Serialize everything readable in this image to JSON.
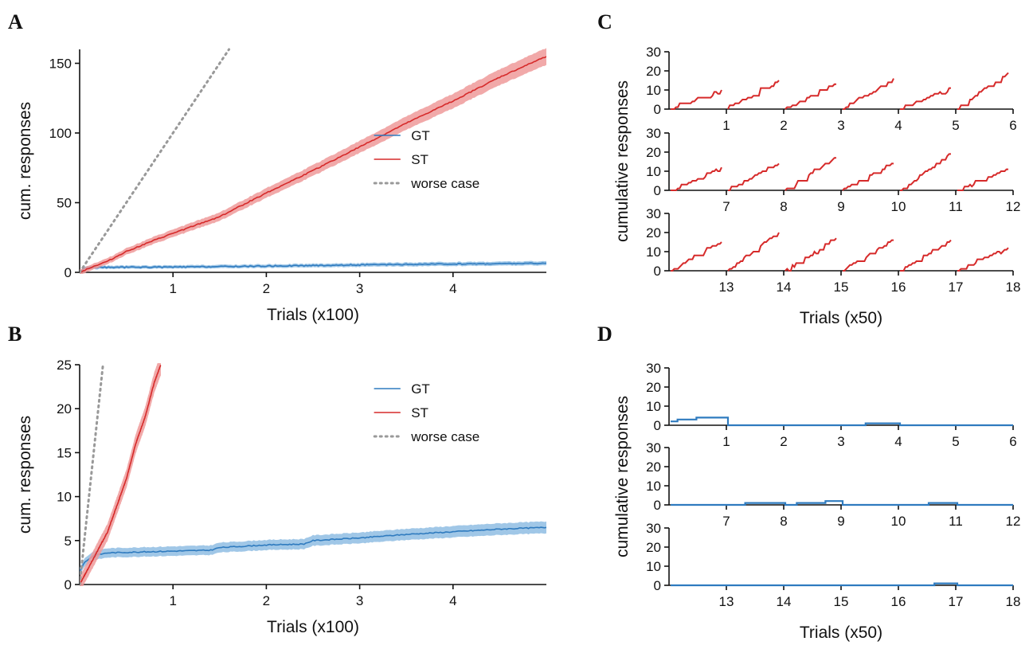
{
  "colors": {
    "gt": "#2f7bbf",
    "st": "#d62a2a",
    "st_band": "#ef9a9a",
    "gt_band": "#8fbde3",
    "worse": "#999999",
    "axis": "#111111"
  },
  "panels": {
    "a": "A",
    "b": "B",
    "c": "C",
    "d": "D"
  },
  "chart_data": [
    {
      "panel": "A",
      "type": "line",
      "xlabel": "Trials (x100)",
      "ylabel": "cum. responses",
      "xlim": [
        0,
        5
      ],
      "ylim": [
        0,
        160
      ],
      "xticks": [
        "1",
        "2",
        "3",
        "4"
      ],
      "yticks": [
        "0",
        "50",
        "100",
        "150"
      ],
      "legend": [
        "GT",
        "ST",
        "worse case"
      ],
      "legend_position": "center-right",
      "series": [
        {
          "name": "GT",
          "x": [
            0,
            0.05,
            0.1,
            0.5,
            1,
            2,
            3,
            4,
            5
          ],
          "y": [
            0,
            3,
            3.5,
            3.7,
            3.8,
            4.5,
            5.3,
            6,
            6.5
          ]
        },
        {
          "name": "ST",
          "x": [
            0,
            0.1,
            0.3,
            0.5,
            0.8,
            1,
            1.5,
            2,
            2.5,
            3,
            3.5,
            4,
            4.5,
            5
          ],
          "y": [
            0,
            3,
            8,
            15,
            23,
            28,
            40,
            57,
            73,
            90,
            107,
            123,
            140,
            155
          ]
        },
        {
          "name": "worse case",
          "x": [
            0,
            1.6
          ],
          "y": [
            0,
            160
          ]
        }
      ]
    },
    {
      "panel": "B",
      "type": "line",
      "xlabel": "Trials (x100)",
      "ylabel": "cum. responses",
      "xlim": [
        0,
        5
      ],
      "ylim": [
        0,
        25
      ],
      "xticks": [
        "1",
        "2",
        "3",
        "4"
      ],
      "yticks": [
        "0",
        "5",
        "10",
        "15",
        "20",
        "25"
      ],
      "legend": [
        "GT",
        "ST",
        "worse case"
      ],
      "legend_position": "top-right",
      "series": [
        {
          "name": "GT",
          "x": [
            0,
            0.05,
            0.15,
            0.3,
            1,
            1.4,
            1.5,
            2,
            2.4,
            2.5,
            3,
            3.5,
            4,
            4.5,
            5
          ],
          "y": [
            1.5,
            2.5,
            3.3,
            3.6,
            3.8,
            3.9,
            4.2,
            4.5,
            4.6,
            5,
            5.3,
            5.7,
            6,
            6.3,
            6.5
          ]
        },
        {
          "name": "ST",
          "x": [
            0,
            0.1,
            0.2,
            0.3,
            0.4,
            0.5,
            0.6,
            0.7,
            0.8,
            0.87
          ],
          "y": [
            0,
            2,
            4,
            6,
            9,
            12,
            16,
            19,
            23,
            25
          ]
        },
        {
          "name": "worse case",
          "x": [
            0,
            0.25
          ],
          "y": [
            0,
            25
          ]
        }
      ]
    },
    {
      "panel": "C",
      "type": "line",
      "xlabel": "Trials (x50)",
      "ylabel": "cumulative responses",
      "ylim": [
        0,
        30
      ],
      "yticks": [
        "0",
        "10",
        "20",
        "30"
      ],
      "rows": [
        {
          "labels": [
            "1",
            "2",
            "3",
            "4",
            "5",
            "6"
          ],
          "finals": [
            10,
            15,
            13,
            16,
            11,
            19
          ]
        },
        {
          "labels": [
            "7",
            "8",
            "9",
            "10",
            "11",
            "12"
          ],
          "finals": [
            12,
            14,
            17,
            14,
            19,
            11
          ]
        },
        {
          "labels": [
            "13",
            "14",
            "15",
            "16",
            "17",
            "18"
          ],
          "finals": [
            15,
            20,
            17,
            16,
            16,
            12
          ]
        }
      ]
    },
    {
      "panel": "D",
      "type": "line",
      "xlabel": "Trials (x50)",
      "ylabel": "cumulative responses",
      "ylim": [
        0,
        30
      ],
      "yticks": [
        "0",
        "10",
        "20",
        "30"
      ],
      "rows": [
        {
          "labels": [
            "1",
            "2",
            "3",
            "4",
            "5",
            "6"
          ],
          "steps": [
            [
              [
                0,
                2
              ],
              [
                0.12,
                3
              ],
              [
                0.45,
                4
              ],
              [
                1,
                0
              ],
              [
                3.4,
                1
              ],
              [
                4,
                0
              ],
              [
                6,
                0
              ]
            ]
          ]
        },
        {
          "labels": [
            "7",
            "8",
            "9",
            "10",
            "11",
            "12"
          ],
          "steps": [
            [
              [
                0,
                0
              ],
              [
                1.3,
                1
              ],
              [
                2,
                0
              ],
              [
                2.2,
                1
              ],
              [
                2.7,
                2
              ],
              [
                3,
                0
              ],
              [
                4.5,
                1
              ],
              [
                5,
                0
              ],
              [
                6,
                0
              ]
            ]
          ]
        },
        {
          "labels": [
            "13",
            "14",
            "15",
            "16",
            "17",
            "18"
          ],
          "steps": [
            [
              [
                0,
                0
              ],
              [
                4.6,
                1
              ],
              [
                5,
                0
              ],
              [
                6,
                0
              ]
            ]
          ]
        }
      ]
    }
  ]
}
